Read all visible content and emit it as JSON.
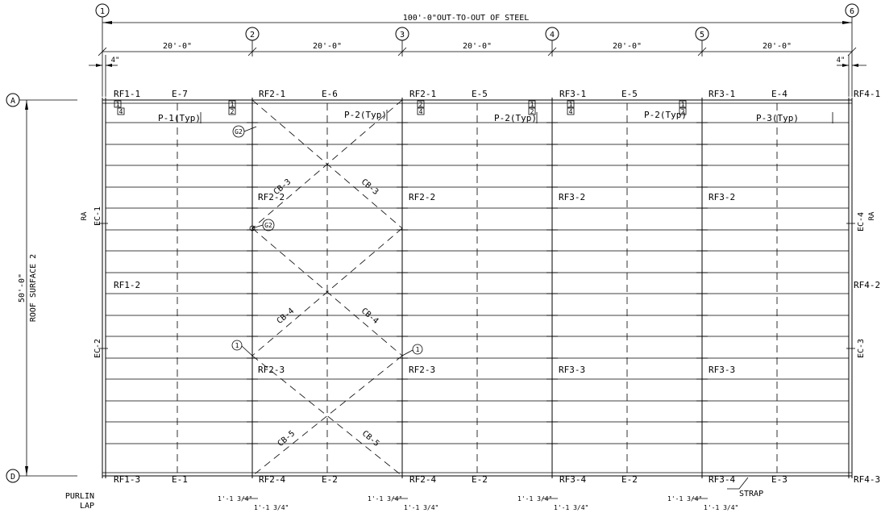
{
  "grid": {
    "columns": [
      "1",
      "2",
      "3",
      "4",
      "5",
      "6"
    ],
    "rows": [
      "A",
      "D"
    ]
  },
  "dimensions": {
    "overall": "100'-0\"OUT-TO-OUT OF STEEL",
    "bays": [
      "20'-0\"",
      "20'-0\"",
      "20'-0\"",
      "20'-0\"",
      "20'-0\""
    ],
    "offset_left": "4\"",
    "offset_right": "4\"",
    "depth": "50'-0\"",
    "surface": "ROOF SURFACE 2"
  },
  "top_labels": [
    "RF1-1",
    "E-7",
    "RF2-1",
    "E-6",
    "RF2-1",
    "E-5",
    "RF3-1",
    "E-5",
    "RF3-1",
    "E-4",
    "RF4-1"
  ],
  "bottom_labels": [
    "RF1-3",
    "E-1",
    "RF2-4",
    "E-2",
    "RF2-4",
    "E-2",
    "RF3-4",
    "E-2",
    "RF3-4",
    "E-3",
    "RF4-3"
  ],
  "panels": [
    "P-1(Typ)",
    "P-2(Typ)",
    "P-2(Typ)",
    "P-2(Typ)",
    "P-3(Typ)"
  ],
  "row2_labels": [
    "RF2-2",
    "RF2-2",
    "RF3-2",
    "RF3-2"
  ],
  "row3_labels": [
    "RF2-3",
    "RF2-3",
    "RF3-3",
    "RF3-3"
  ],
  "rf_side": [
    "RF1-2",
    "RF4-2"
  ],
  "cables": [
    "CB-3",
    "CB-3",
    "CB-4",
    "CB-4",
    "CB-5",
    "CB-5"
  ],
  "endcols": [
    "EC-1",
    "EC-2",
    "EC-4",
    "EC-3"
  ],
  "ra": [
    "RA",
    "RA"
  ],
  "callouts": [
    "G2",
    "G2",
    "1",
    "1"
  ],
  "marks": [
    "1",
    "2",
    "1",
    "2",
    "2",
    "1",
    "2",
    "1",
    "2",
    "1",
    "4",
    "4",
    "2",
    "4",
    "4",
    "2"
  ],
  "purlin": [
    "PURLIN",
    "LAP"
  ],
  "strap": "STRAP",
  "lap_dims": [
    "1'-1 3/4\"",
    "1'-1 3/4\"",
    "1'-1 3/4\"",
    "1'-1 3/4\"",
    "1'-1 3/4\"",
    "1'-1 3/4\"",
    "1'-1 3/4\"",
    "1'-1 3/4\""
  ]
}
